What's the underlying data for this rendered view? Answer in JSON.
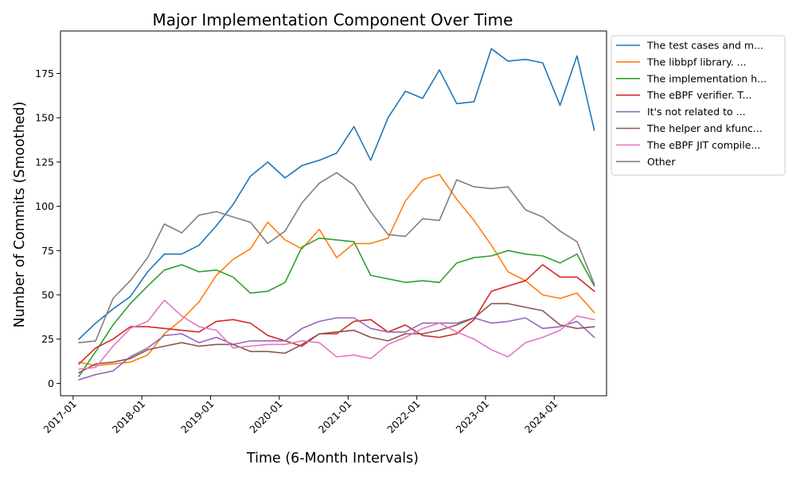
{
  "chart_data": {
    "type": "line",
    "title": "Major Implementation Component Over Time",
    "xlabel": "Time (6-Month Intervals)",
    "ylabel": "Number of Commits (Smoothed)",
    "xlim": [
      "2016-10-26",
      "2024-10-05"
    ],
    "ylim": [
      -7,
      199
    ],
    "x_ticks": [
      "2017-01",
      "2018-01",
      "2019-01",
      "2020-01",
      "2021-01",
      "2022-01",
      "2023-01",
      "2024-01"
    ],
    "y_ticks": [
      0,
      25,
      50,
      75,
      100,
      125,
      150,
      175
    ],
    "grid": false,
    "legend_position": "outside upper right",
    "x": [
      "2017-02",
      "2017-05",
      "2017-08",
      "2017-11",
      "2018-02",
      "2018-05",
      "2018-08",
      "2018-11",
      "2019-02",
      "2019-05",
      "2019-08",
      "2019-11",
      "2020-02",
      "2020-05",
      "2020-08",
      "2020-11",
      "2021-02",
      "2021-05",
      "2021-08",
      "2021-11",
      "2022-02",
      "2022-05",
      "2022-08",
      "2022-11",
      "2023-02",
      "2023-05",
      "2023-08",
      "2023-11",
      "2024-02",
      "2024-05",
      "2024-08"
    ],
    "series": [
      {
        "name": "The test cases and m...",
        "color": "#1f77b4",
        "values": [
          25,
          34,
          42,
          49,
          63,
          73,
          73,
          78,
          89,
          101,
          117,
          125,
          116,
          123,
          126,
          130,
          145,
          126,
          150,
          165,
          161,
          177,
          158,
          159,
          189,
          182,
          183,
          181,
          157,
          185,
          143
        ]
      },
      {
        "name": "The libbpf library. ...",
        "color": "#ff7f0e",
        "values": [
          12,
          10,
          11,
          12,
          16,
          28,
          36,
          46,
          61,
          70,
          76,
          91,
          81,
          76,
          87,
          71,
          79,
          79,
          82,
          103,
          115,
          118,
          104,
          92,
          78,
          63,
          58,
          50,
          48,
          51,
          40
        ]
      },
      {
        "name": "The implementation h...",
        "color": "#2ca02c",
        "values": [
          4,
          18,
          33,
          45,
          55,
          64,
          67,
          63,
          64,
          60,
          51,
          52,
          57,
          77,
          82,
          81,
          80,
          61,
          59,
          57,
          58,
          57,
          68,
          71,
          72,
          75,
          73,
          72,
          68,
          73,
          55
        ]
      },
      {
        "name": "The eBPF verifier. T...",
        "color": "#d62728",
        "values": [
          11,
          20,
          25,
          32,
          32,
          31,
          30,
          29,
          35,
          36,
          34,
          27,
          24,
          21,
          28,
          28,
          35,
          36,
          29,
          33,
          27,
          26,
          28,
          36,
          52,
          55,
          58,
          67,
          60,
          60,
          52
        ]
      },
      {
        "name": "It's not related to ...",
        "color": "#9467bd",
        "values": [
          2,
          5,
          7,
          15,
          20,
          27,
          28,
          23,
          26,
          22,
          24,
          24,
          24,
          31,
          35,
          37,
          37,
          31,
          29,
          29,
          34,
          34,
          34,
          37,
          34,
          35,
          37,
          31,
          32,
          35,
          26
        ]
      },
      {
        "name": "The helper and kfunc...",
        "color": "#8c564b",
        "values": [
          6,
          11,
          12,
          14,
          19,
          21,
          23,
          21,
          22,
          22,
          18,
          18,
          17,
          22,
          28,
          29,
          30,
          26,
          24,
          28,
          28,
          30,
          33,
          37,
          45,
          45,
          43,
          41,
          33,
          31,
          32
        ]
      },
      {
        "name": "The eBPF JIT compile...",
        "color": "#e377c2",
        "values": [
          8,
          9,
          21,
          31,
          35,
          47,
          38,
          32,
          30,
          20,
          21,
          22,
          22,
          24,
          23,
          15,
          16,
          14,
          22,
          26,
          31,
          34,
          29,
          25,
          19,
          15,
          23,
          26,
          30,
          38,
          36
        ]
      },
      {
        "name": "Other",
        "color": "#7f7f7f",
        "values": [
          23,
          24,
          48,
          58,
          71,
          90,
          85,
          95,
          97,
          94,
          91,
          79,
          86,
          102,
          113,
          119,
          112,
          97,
          84,
          83,
          93,
          92,
          115,
          111,
          110,
          111,
          98,
          94,
          86,
          80,
          56
        ]
      }
    ]
  }
}
